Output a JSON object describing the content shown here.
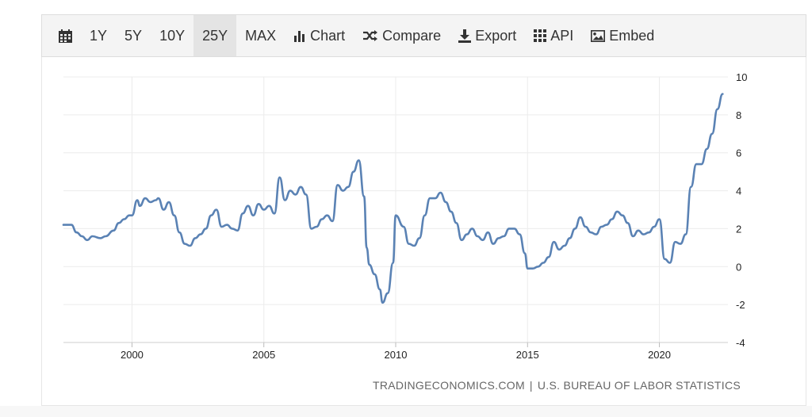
{
  "toolbar": {
    "items": [
      {
        "label": "",
        "icon": "calendar-icon"
      },
      {
        "label": "1Y"
      },
      {
        "label": "5Y"
      },
      {
        "label": "10Y"
      },
      {
        "label": "25Y",
        "active": true
      },
      {
        "label": "MAX"
      },
      {
        "label": "Chart",
        "icon": "bar-chart-icon"
      },
      {
        "label": "Compare",
        "icon": "shuffle-icon"
      },
      {
        "label": "Export",
        "icon": "download-icon"
      },
      {
        "label": "API",
        "icon": "grid-icon"
      },
      {
        "label": "Embed",
        "icon": "image-icon"
      }
    ]
  },
  "source": {
    "left": "TRADINGECONOMICS.COM",
    "separator": "|",
    "right": "U.S. BUREAU OF LABOR STATISTICS"
  },
  "chart_data": {
    "type": "line",
    "title": "",
    "xlabel": "",
    "ylabel": "",
    "xlim": [
      1997.4,
      2022.6
    ],
    "ylim": [
      -4,
      10
    ],
    "x_ticks": [
      "2000",
      "2005",
      "2010",
      "2015",
      "2020"
    ],
    "y_ticks": [
      "10",
      "8",
      "6",
      "4",
      "2",
      "0",
      "-2",
      "-4"
    ],
    "grid": true,
    "legend": "none",
    "line_color": "#5a82b4",
    "series": [
      {
        "x": [
          1997.4,
          1997.7,
          1997.9,
          1998.1,
          1998.3,
          1998.5,
          1998.8,
          1999.0,
          1999.3,
          1999.5,
          1999.7,
          1999.9,
          2000.0,
          2000.2,
          2000.3,
          2000.5,
          2000.7,
          2000.9,
          2001.0,
          2001.2,
          2001.4,
          2001.6,
          2001.8,
          2002.0,
          2002.2,
          2002.4,
          2002.6,
          2002.8,
          2003.0,
          2003.2,
          2003.4,
          2003.6,
          2003.8,
          2004.0,
          2004.2,
          2004.4,
          2004.6,
          2004.8,
          2005.0,
          2005.2,
          2005.4,
          2005.6,
          2005.8,
          2006.0,
          2006.2,
          2006.4,
          2006.6,
          2006.8,
          2007.0,
          2007.2,
          2007.4,
          2007.6,
          2007.8,
          2008.0,
          2008.2,
          2008.4,
          2008.6,
          2008.8,
          2008.9,
          2009.0,
          2009.2,
          2009.4,
          2009.5,
          2009.7,
          2009.9,
          2010.0,
          2010.3,
          2010.5,
          2010.7,
          2010.9,
          2011.1,
          2011.3,
          2011.5,
          2011.7,
          2011.9,
          2012.1,
          2012.3,
          2012.5,
          2012.7,
          2012.9,
          2013.1,
          2013.3,
          2013.5,
          2013.7,
          2013.9,
          2014.1,
          2014.3,
          2014.5,
          2014.7,
          2014.9,
          2015.0,
          2015.2,
          2015.4,
          2015.6,
          2015.8,
          2016.0,
          2016.2,
          2016.4,
          2016.6,
          2016.8,
          2017.0,
          2017.2,
          2017.4,
          2017.6,
          2017.8,
          2018.0,
          2018.2,
          2018.4,
          2018.6,
          2018.8,
          2019.0,
          2019.2,
          2019.4,
          2019.6,
          2019.8,
          2020.0,
          2020.2,
          2020.4,
          2020.6,
          2020.8,
          2021.0,
          2021.2,
          2021.4,
          2021.6,
          2021.8,
          2022.0,
          2022.2,
          2022.4
        ],
        "values": [
          2.2,
          2.2,
          1.8,
          1.6,
          1.4,
          1.6,
          1.5,
          1.6,
          1.9,
          2.3,
          2.5,
          2.7,
          2.7,
          3.5,
          3.2,
          3.6,
          3.4,
          3.5,
          3.6,
          3.0,
          3.4,
          2.7,
          1.8,
          1.2,
          1.1,
          1.5,
          1.7,
          2.0,
          2.7,
          3.0,
          2.1,
          2.2,
          2.0,
          1.9,
          2.8,
          3.2,
          2.7,
          3.3,
          3.0,
          3.2,
          2.8,
          4.7,
          3.5,
          4.0,
          3.8,
          4.2,
          3.8,
          2.0,
          2.1,
          2.5,
          2.7,
          2.4,
          4.3,
          4.0,
          4.2,
          5.0,
          5.6,
          3.7,
          1.0,
          0.1,
          -0.4,
          -1.2,
          -1.9,
          -1.4,
          0.2,
          2.7,
          2.1,
          1.2,
          1.1,
          1.5,
          2.7,
          3.6,
          3.6,
          3.9,
          3.4,
          2.9,
          2.3,
          1.4,
          1.7,
          2.0,
          1.6,
          1.4,
          1.8,
          1.2,
          1.5,
          1.6,
          2.0,
          2.0,
          1.7,
          0.7,
          -0.1,
          -0.1,
          0.0,
          0.2,
          0.5,
          1.3,
          0.9,
          1.1,
          1.5,
          2.0,
          2.6,
          2.1,
          1.8,
          1.7,
          2.1,
          2.2,
          2.5,
          2.9,
          2.7,
          2.3,
          1.6,
          1.9,
          1.7,
          1.8,
          2.1,
          2.5,
          0.4,
          0.2,
          1.3,
          1.2,
          1.7,
          4.2,
          5.4,
          5.4,
          6.2,
          7.0,
          8.3,
          9.1
        ]
      }
    ]
  }
}
